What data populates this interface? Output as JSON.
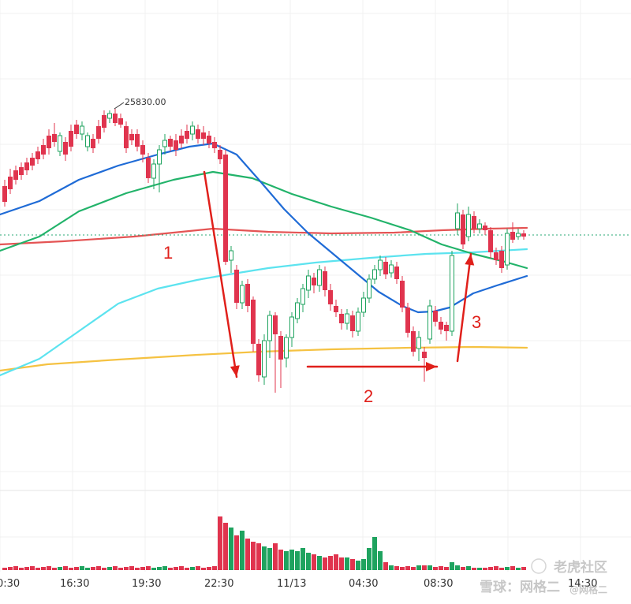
{
  "chart_data": {
    "type": "candlestick",
    "x_tick_labels": [
      "0:30",
      "16:30",
      "19:30",
      "22:30",
      "11/13",
      "04:30",
      "08:30",
      "14:30"
    ],
    "high_marker_label": "25830.00",
    "annotations": [
      "1",
      "2",
      "3"
    ],
    "watermarks": [
      "老虎社区",
      "雪球：网格二",
      "@网格二"
    ],
    "colors": {
      "up": "#1fa35f",
      "down": "#e0344e",
      "ma_blue": "#1f6bd6",
      "ma_green": "#22b36a",
      "ma_red": "#e45454",
      "ma_cyan": "#5ce3ef",
      "ma_yellow": "#f5c242",
      "current_price_line": "#2aa876",
      "arrow": "#e0201b"
    },
    "grid": true
  }
}
